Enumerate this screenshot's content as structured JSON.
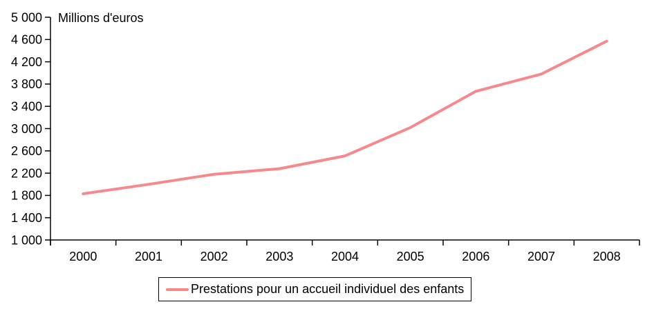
{
  "chart": {
    "axis_title": "Millions d'euros",
    "legend_label": "Prestations pour un accueil individuel des enfants"
  },
  "chart_data": {
    "type": "line",
    "title": "Millions d'euros",
    "xlabel": "",
    "ylabel": "Millions d'euros",
    "categories": [
      "2000",
      "2001",
      "2002",
      "2003",
      "2004",
      "2005",
      "2006",
      "2007",
      "2008"
    ],
    "series": [
      {
        "name": "Prestations pour un accueil individuel des enfants",
        "values": [
          1830,
          2000,
          2180,
          2280,
          2510,
          3020,
          3670,
          3980,
          4570
        ],
        "color": "#F6898C",
        "line_width": 4
      }
    ],
    "ylim": [
      1000,
      5000
    ],
    "ytick_step": 400,
    "ytick_labels": [
      "1 000",
      "1 400",
      "1 800",
      "2 200",
      "2 600",
      "3 000",
      "3 400",
      "3 800",
      "4 200",
      "4 600",
      "5 000"
    ],
    "grid": false,
    "legend_position": "bottom",
    "axis_color": "#000000",
    "background_color": "#FFFFFF"
  }
}
